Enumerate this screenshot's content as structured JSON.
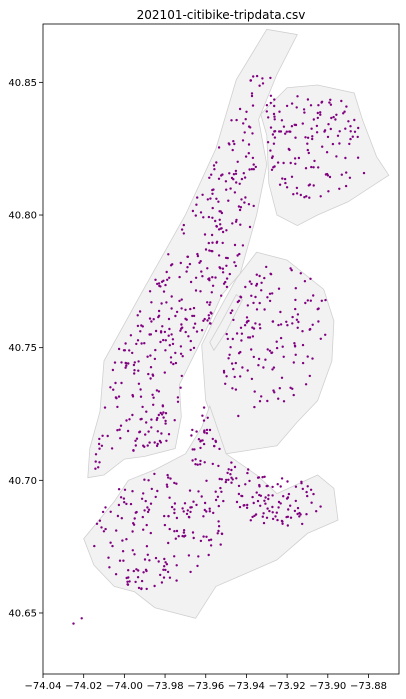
{
  "chart_data": {
    "type": "scatter",
    "title": "202101-citibike-tripdata.csv",
    "xlabel": "",
    "ylabel": "",
    "xlim": [
      -74.04,
      -73.865
    ],
    "ylim": [
      40.627,
      40.872
    ],
    "x_ticks": [
      -74.04,
      -74.02,
      -74.0,
      -73.98,
      -73.96,
      -73.94,
      -73.92,
      -73.9,
      -73.88
    ],
    "x_tick_labels": [
      "−74.04",
      "−74.02",
      "−74.00",
      "−73.98",
      "−73.96",
      "−73.94",
      "−73.92",
      "−73.90",
      "−73.88"
    ],
    "y_ticks": [
      40.65,
      40.7,
      40.75,
      40.8,
      40.85
    ],
    "y_tick_labels": [
      "40.65",
      "40.70",
      "40.75",
      "40.80",
      "40.85"
    ],
    "grid": false,
    "legend": "none",
    "colors": {
      "points": "#800080",
      "land_fill": "#f2f2f2",
      "land_edge": "#d0d0d0",
      "axes": "#000000"
    },
    "basemap": [
      {
        "name": "manhattan",
        "lonlat": [
          [
            -74.018,
            40.701
          ],
          [
            -74.01,
            40.702
          ],
          [
            -74.0,
            40.708
          ],
          [
            -73.99,
            40.709
          ],
          [
            -73.975,
            40.712
          ],
          [
            -73.972,
            40.724
          ],
          [
            -73.973,
            40.736
          ],
          [
            -73.962,
            40.753
          ],
          [
            -73.952,
            40.77
          ],
          [
            -73.943,
            40.778
          ],
          [
            -73.935,
            40.8
          ],
          [
            -73.93,
            40.819
          ],
          [
            -73.934,
            40.836
          ],
          [
            -73.925,
            40.853
          ],
          [
            -73.915,
            40.868
          ],
          [
            -73.93,
            40.87
          ],
          [
            -73.945,
            40.851
          ],
          [
            -73.955,
            40.825
          ],
          [
            -73.97,
            40.8
          ],
          [
            -73.992,
            40.77
          ],
          [
            -74.01,
            40.745
          ],
          [
            -74.012,
            40.726
          ],
          [
            -74.017,
            40.712
          ]
        ]
      },
      {
        "name": "bronx",
        "lonlat": [
          [
            -73.933,
            40.838
          ],
          [
            -73.93,
            40.83
          ],
          [
            -73.929,
            40.812
          ],
          [
            -73.925,
            40.8
          ],
          [
            -73.915,
            40.796
          ],
          [
            -73.905,
            40.8
          ],
          [
            -73.89,
            40.805
          ],
          [
            -73.876,
            40.812
          ],
          [
            -73.87,
            40.815
          ],
          [
            -73.876,
            40.822
          ],
          [
            -73.883,
            40.836
          ],
          [
            -73.887,
            40.846
          ],
          [
            -73.905,
            40.849
          ],
          [
            -73.92,
            40.848
          ]
        ]
      },
      {
        "name": "queens",
        "lonlat": [
          [
            -73.962,
            40.751
          ],
          [
            -73.955,
            40.762
          ],
          [
            -73.945,
            40.776
          ],
          [
            -73.935,
            40.786
          ],
          [
            -73.92,
            40.783
          ],
          [
            -73.902,
            40.772
          ],
          [
            -73.897,
            40.76
          ],
          [
            -73.898,
            40.745
          ],
          [
            -73.905,
            40.73
          ],
          [
            -73.915,
            40.722
          ],
          [
            -73.925,
            40.713
          ],
          [
            -73.95,
            40.71
          ],
          [
            -73.96,
            40.73
          ]
        ]
      },
      {
        "name": "brooklyn",
        "lonlat": [
          [
            -73.958,
            40.728
          ],
          [
            -73.95,
            40.71
          ],
          [
            -73.935,
            40.702
          ],
          [
            -73.925,
            40.695
          ],
          [
            -73.905,
            40.702
          ],
          [
            -73.897,
            40.697
          ],
          [
            -73.895,
            40.685
          ],
          [
            -73.91,
            40.68
          ],
          [
            -73.925,
            40.67
          ],
          [
            -73.94,
            40.665
          ],
          [
            -73.955,
            40.66
          ],
          [
            -73.965,
            40.648
          ],
          [
            -73.985,
            40.652
          ],
          [
            -73.995,
            40.658
          ],
          [
            -74.005,
            40.66
          ],
          [
            -74.015,
            40.668
          ],
          [
            -74.02,
            40.678
          ],
          [
            -74.005,
            40.692
          ],
          [
            -73.998,
            40.7
          ],
          [
            -73.985,
            40.704
          ],
          [
            -73.97,
            40.71
          ],
          [
            -73.962,
            40.72
          ]
        ]
      },
      {
        "name": "roosevelt-island",
        "lonlat": [
          [
            -73.958,
            40.752
          ],
          [
            -73.952,
            40.76
          ],
          [
            -73.945,
            40.77
          ],
          [
            -73.942,
            40.768
          ],
          [
            -73.95,
            40.756
          ],
          [
            -73.956,
            40.749
          ]
        ]
      }
    ],
    "regions": [
      {
        "name": "manhattan",
        "n": 380,
        "seed": 11,
        "lonlat": [
          [
            -74.016,
            40.703
          ],
          [
            -74.0,
            40.71
          ],
          [
            -73.98,
            40.712
          ],
          [
            -73.974,
            40.725
          ],
          [
            -73.97,
            40.74
          ],
          [
            -73.96,
            40.755
          ],
          [
            -73.948,
            40.775
          ],
          [
            -73.938,
            40.795
          ],
          [
            -73.934,
            40.815
          ],
          [
            -73.936,
            40.835
          ],
          [
            -73.928,
            40.852
          ],
          [
            -73.942,
            40.853
          ],
          [
            -73.952,
            40.828
          ],
          [
            -73.966,
            40.805
          ],
          [
            -73.988,
            40.772
          ],
          [
            -74.004,
            40.748
          ],
          [
            -74.01,
            40.726
          ]
        ]
      },
      {
        "name": "bronx",
        "n": 140,
        "seed": 23,
        "lonlat": [
          [
            -73.93,
            40.845
          ],
          [
            -73.93,
            40.82
          ],
          [
            -73.922,
            40.808
          ],
          [
            -73.9,
            40.805
          ],
          [
            -73.882,
            40.815
          ],
          [
            -73.883,
            40.835
          ],
          [
            -73.895,
            40.845
          ]
        ]
      },
      {
        "name": "queens",
        "n": 150,
        "seed": 37,
        "lonlat": [
          [
            -73.95,
            40.76
          ],
          [
            -73.935,
            40.782
          ],
          [
            -73.912,
            40.78
          ],
          [
            -73.9,
            40.768
          ],
          [
            -73.9,
            40.748
          ],
          [
            -73.915,
            40.73
          ],
          [
            -73.945,
            40.722
          ],
          [
            -73.952,
            40.74
          ]
        ]
      },
      {
        "name": "brooklyn-north",
        "n": 150,
        "seed": 53,
        "lonlat": [
          [
            -73.962,
            40.73
          ],
          [
            -73.955,
            40.715
          ],
          [
            -73.935,
            40.702
          ],
          [
            -73.91,
            40.7
          ],
          [
            -73.902,
            40.69
          ],
          [
            -73.915,
            40.682
          ],
          [
            -73.945,
            40.685
          ],
          [
            -73.962,
            40.698
          ],
          [
            -73.97,
            40.712
          ]
        ]
      },
      {
        "name": "brooklyn-south",
        "n": 170,
        "seed": 71,
        "lonlat": [
          [
            -74.004,
            40.697
          ],
          [
            -73.985,
            40.705
          ],
          [
            -73.965,
            40.7
          ],
          [
            -73.95,
            40.69
          ],
          [
            -73.95,
            40.678
          ],
          [
            -73.96,
            40.668
          ],
          [
            -73.975,
            40.66
          ],
          [
            -73.995,
            40.658
          ],
          [
            -74.012,
            40.668
          ],
          [
            -74.018,
            40.68
          ]
        ]
      }
    ],
    "extra_points": [
      {
        "x": -74.025,
        "y": 40.646
      },
      {
        "x": -74.021,
        "y": 40.648
      }
    ]
  }
}
